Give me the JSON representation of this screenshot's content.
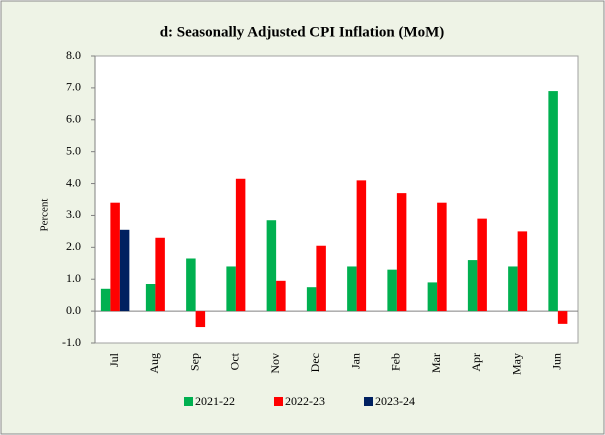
{
  "chart_data": {
    "type": "bar",
    "title": "d: Seasonally Adjusted CPI Inflation (MoM)",
    "y_label": "Percent",
    "categories": [
      "Jul",
      "Aug",
      "Sep",
      "Oct",
      "Nov",
      "Dec",
      "Jan",
      "Feb",
      "Mar",
      "Apr",
      "May",
      "Jun"
    ],
    "series": [
      {
        "name": "2021-22",
        "color": "#00b050",
        "values": [
          0.7,
          0.85,
          1.65,
          1.4,
          2.85,
          0.75,
          1.4,
          1.3,
          0.9,
          1.6,
          1.4,
          6.9
        ]
      },
      {
        "name": "2022-23",
        "color": "#ff0000",
        "values": [
          3.4,
          2.3,
          -0.5,
          4.15,
          0.95,
          2.05,
          4.1,
          3.7,
          3.4,
          2.9,
          2.5,
          -0.4
        ]
      },
      {
        "name": "2023-24",
        "color": "#002060",
        "values": [
          2.55,
          null,
          null,
          null,
          null,
          null,
          null,
          null,
          null,
          null,
          null,
          null
        ]
      }
    ],
    "ylim": [
      -1,
      8
    ],
    "yticks": [
      {
        "value": -1,
        "label": "-1.0"
      },
      {
        "value": 0,
        "label": "0.0"
      },
      {
        "value": 1,
        "label": "1.0"
      },
      {
        "value": 2,
        "label": "2.0"
      },
      {
        "value": 3,
        "label": "3.0"
      },
      {
        "value": 4,
        "label": "4.0"
      },
      {
        "value": 5,
        "label": "5.0"
      },
      {
        "value": 6,
        "label": "6.0"
      },
      {
        "value": 7,
        "label": "7.0"
      },
      {
        "value": 8,
        "label": "8.0"
      }
    ],
    "legend": "bottom"
  }
}
